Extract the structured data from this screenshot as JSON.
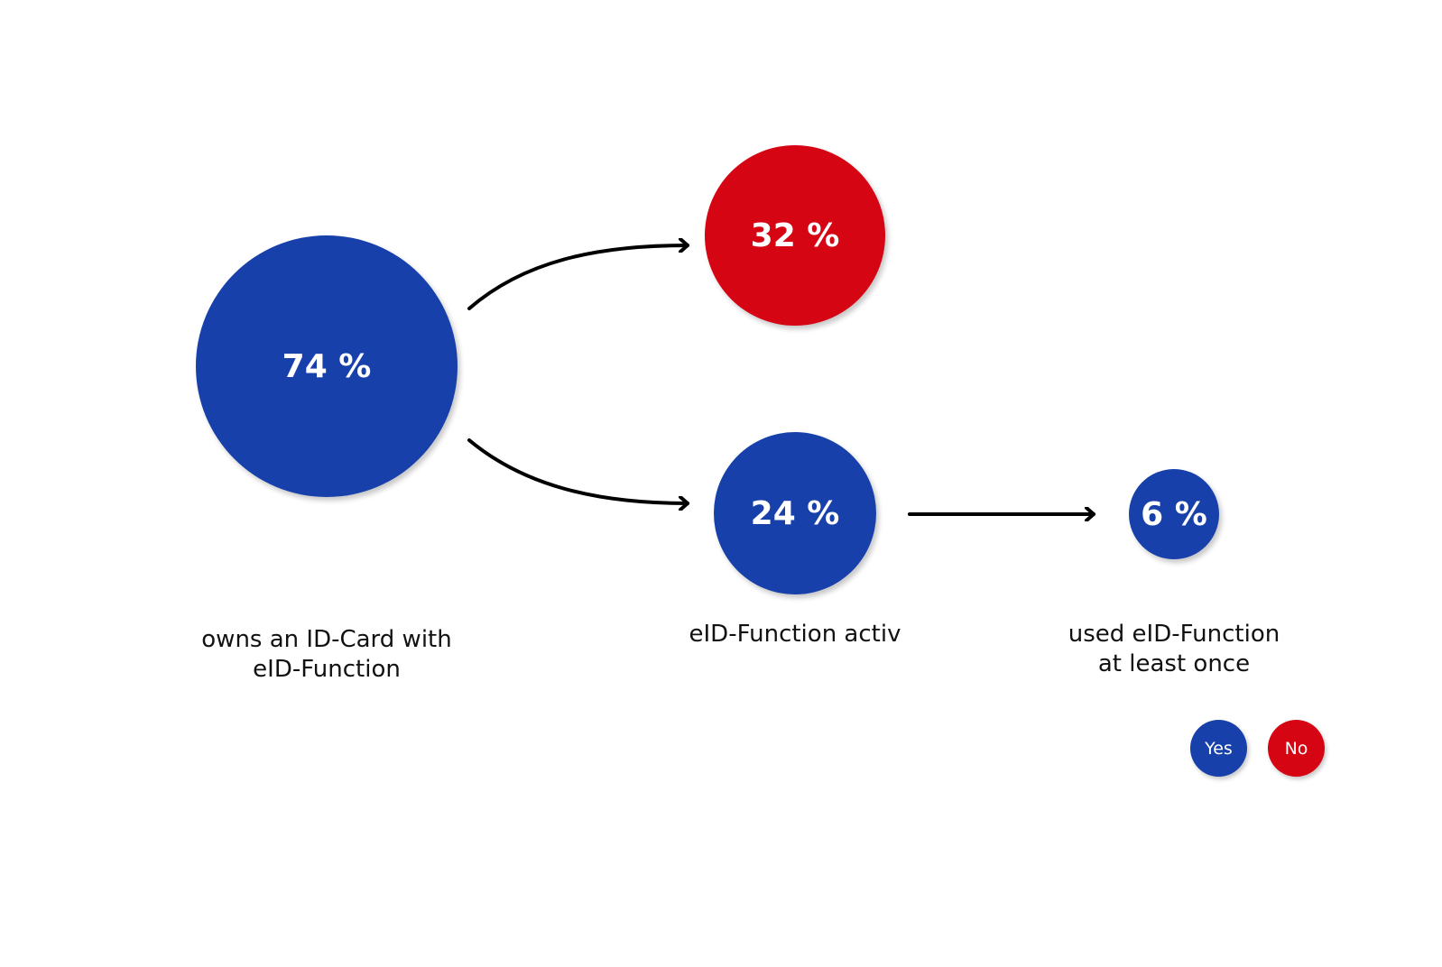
{
  "colors": {
    "yes": "#1740ab",
    "no": "#d60513",
    "arrow": "#000000",
    "text": "#111111"
  },
  "nodes": {
    "owns": {
      "value": "74 %",
      "caption": "owns an ID-Card with\neID-Function"
    },
    "not_active": {
      "value": "32 %"
    },
    "active": {
      "value": "24 %",
      "caption": "eID-Function activ"
    },
    "used": {
      "value": "6 %",
      "caption": "used eID-Function\nat least once"
    }
  },
  "legend": {
    "yes_label": "Yes",
    "no_label": "No"
  }
}
